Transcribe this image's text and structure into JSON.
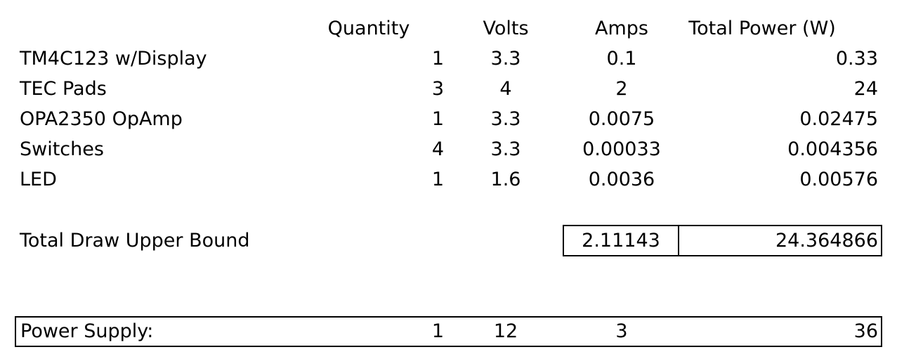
{
  "header": {
    "quantity": "Quantity",
    "volts": "Volts",
    "amps": "Amps",
    "total_power": "Total Power (W)"
  },
  "rows": [
    {
      "name": "TM4C123 w/Display",
      "quantity": "1",
      "volts": "3.3",
      "amps": "0.1",
      "power": "0.33"
    },
    {
      "name": "TEC Pads",
      "quantity": "3",
      "volts": "4",
      "amps": "2",
      "power": "24"
    },
    {
      "name": "OPA2350 OpAmp",
      "quantity": "1",
      "volts": "3.3",
      "amps": "0.0075",
      "power": "0.02475"
    },
    {
      "name": "Switches",
      "quantity": "4",
      "volts": "3.3",
      "amps": "0.00033",
      "power": "0.004356"
    },
    {
      "name": "LED",
      "quantity": "1",
      "volts": "1.6",
      "amps": "0.0036",
      "power": "0.00576"
    }
  ],
  "total": {
    "label": "Total Draw Upper Bound",
    "amps": "2.11143",
    "power": "24.364866"
  },
  "supply": {
    "label": "Power Supply:",
    "quantity": "1",
    "volts": "12",
    "amps": "3",
    "power": "36"
  }
}
